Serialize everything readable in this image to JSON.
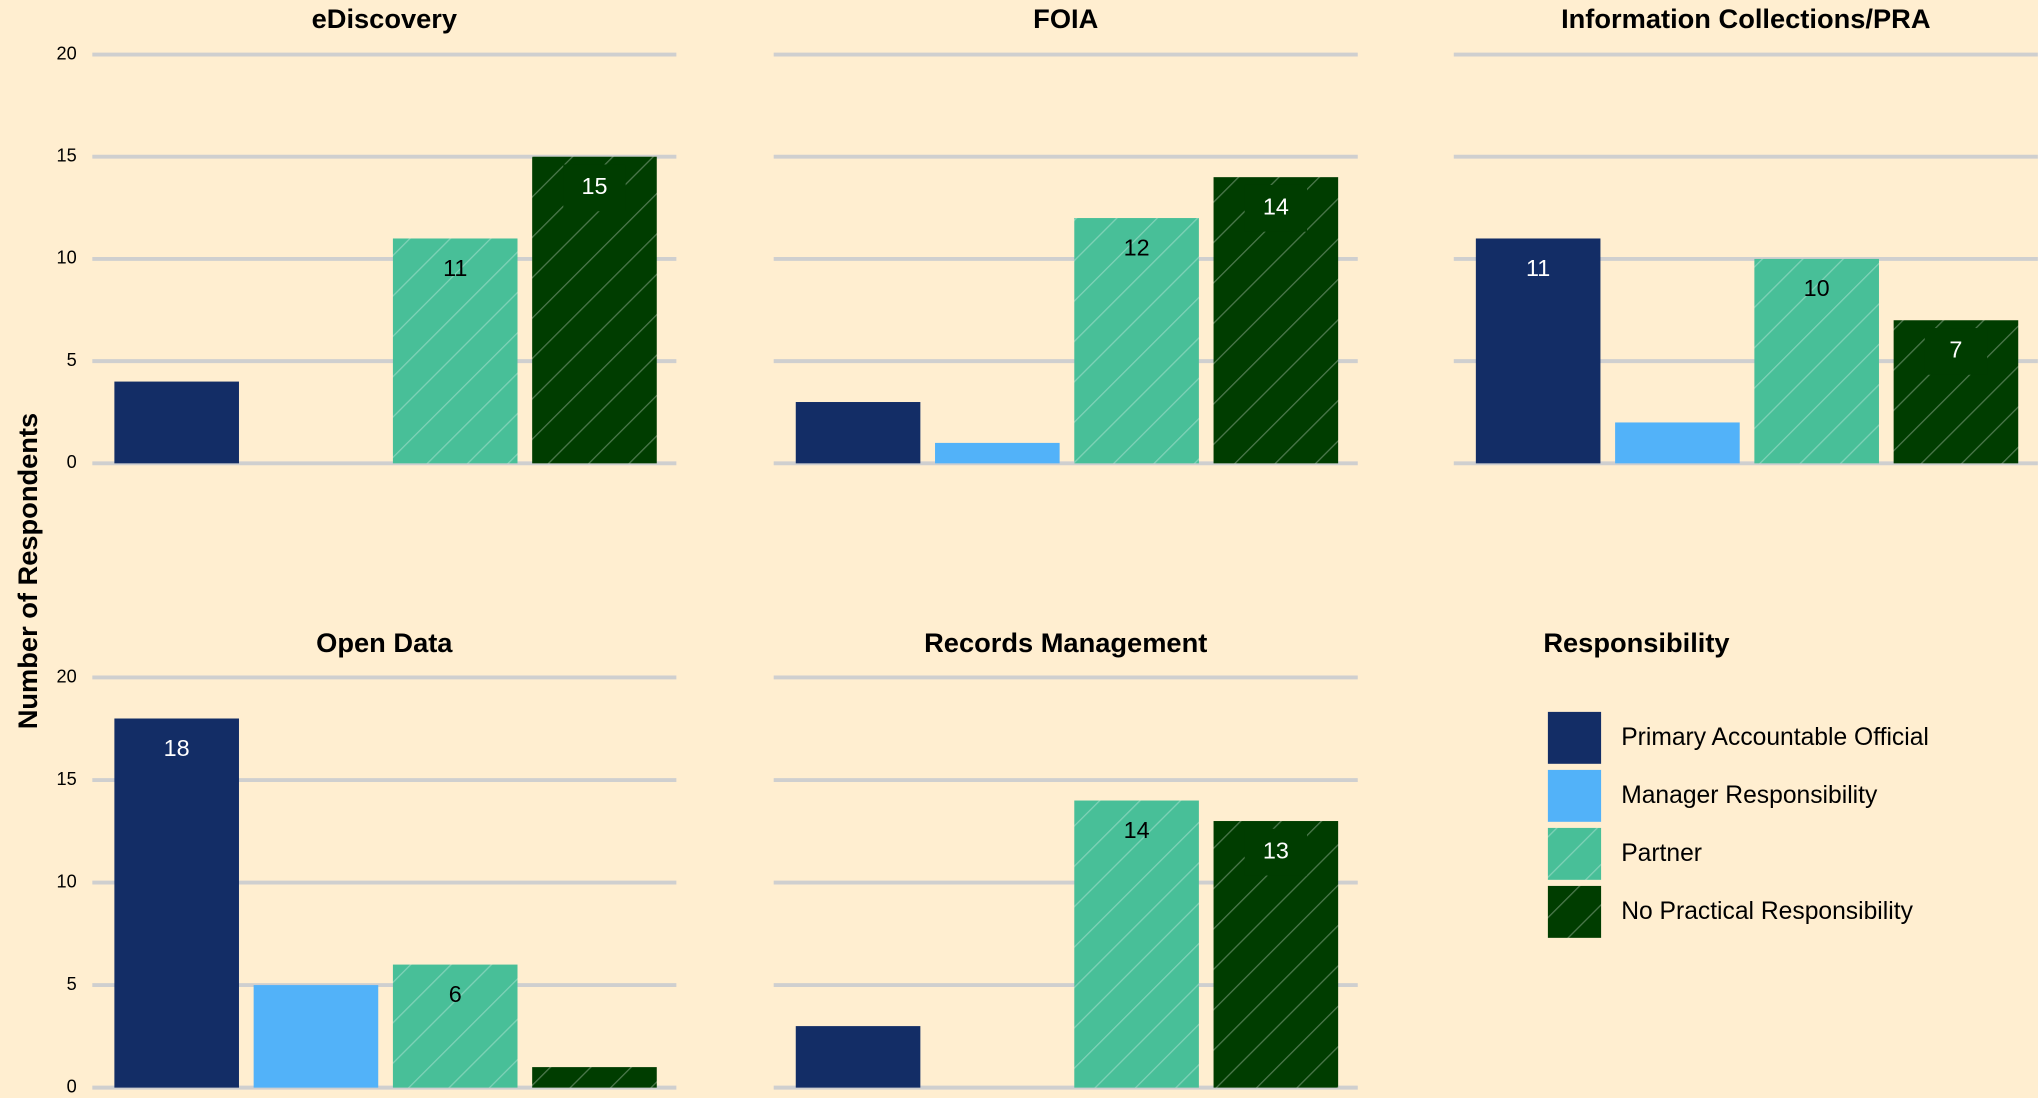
{
  "chart_data": [
    {
      "type": "bar",
      "title": "eDiscovery",
      "values": [
        4,
        0,
        11,
        15
      ],
      "value_labels": [
        null,
        null,
        11,
        15
      ],
      "ylim": [
        0,
        20
      ],
      "yticks": [
        0,
        5,
        10,
        15,
        20
      ],
      "grid": true
    },
    {
      "type": "bar",
      "title": "FOIA",
      "values": [
        3,
        1,
        12,
        14
      ],
      "value_labels": [
        null,
        null,
        12,
        14
      ],
      "ylim": [
        0,
        20
      ],
      "yticks": [
        0,
        5,
        10,
        15,
        20
      ],
      "grid": true
    },
    {
      "type": "bar",
      "title": "Information Collections/PRA",
      "values": [
        11,
        2,
        10,
        7
      ],
      "value_labels": [
        11,
        null,
        10,
        7
      ],
      "ylim": [
        0,
        20
      ],
      "yticks": [
        0,
        5,
        10,
        15,
        20
      ],
      "grid": true
    },
    {
      "type": "bar",
      "title": "Open Data",
      "values": [
        18,
        5,
        6,
        1
      ],
      "value_labels": [
        18,
        null,
        6,
        null
      ],
      "ylim": [
        0,
        20
      ],
      "yticks": [
        0,
        5,
        10,
        15,
        20
      ],
      "grid": true
    },
    {
      "type": "bar",
      "title": "Records Management",
      "values": [
        3,
        0,
        14,
        13
      ],
      "value_labels": [
        null,
        null,
        14,
        13
      ],
      "ylim": [
        0,
        20
      ],
      "yticks": [
        0,
        5,
        10,
        15,
        20
      ],
      "grid": true
    }
  ],
  "ylabel": "Number of Respondents",
  "legend": {
    "title": "Responsibility",
    "items": [
      {
        "name": "Primary Accountable Official",
        "color": "#132d66",
        "hatch": false,
        "label_color": "#ffffff",
        "label_box": false
      },
      {
        "name": "Manager Responsibility",
        "color": "#52b2f9",
        "hatch": false,
        "label_color": "#000000",
        "label_box": false
      },
      {
        "name": "Partner",
        "color": "#48bf98",
        "hatch": true,
        "label_color": "#000000",
        "label_box": false
      },
      {
        "name": "No Practical Responsibility",
        "color": "#003d00",
        "hatch": true,
        "label_color": "#ffffff",
        "label_box": true
      }
    ]
  }
}
